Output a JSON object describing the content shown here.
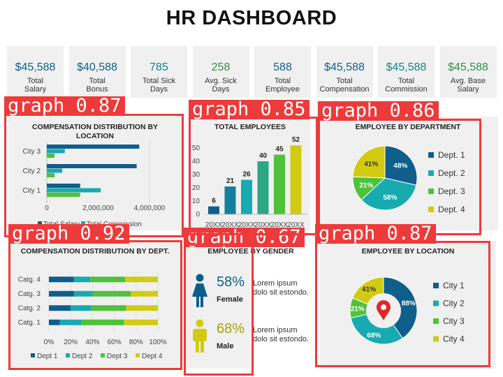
{
  "page_title": "HR DASHBOARD",
  "colors": {
    "navy": "#0f5e8c",
    "teal": "#17aab0",
    "green": "#4ec23a",
    "yellow": "#d2cb12",
    "kpi_green": "#2e8f44",
    "detect": "#ee3a3a"
  },
  "kpis": [
    {
      "value": "$45,588",
      "label1": "Total",
      "label2": "Salary",
      "color": "#0f5e8c"
    },
    {
      "value": "$40,588",
      "label1": "Total",
      "label2": "Bonus",
      "color": "#0f5e8c"
    },
    {
      "value": "785",
      "label1": "Total Sick",
      "label2": "Days",
      "color": "#11828a"
    },
    {
      "value": "258",
      "label1": "Avg. Sick",
      "label2": "Days",
      "color": "#2e8f44"
    },
    {
      "value": "588",
      "label1": "Total",
      "label2": "Employee",
      "color": "#0f5e8c"
    },
    {
      "value": "$45,588",
      "label1": "Total",
      "label2": "Compensation",
      "color": "#0f5e8c"
    },
    {
      "value": "$45,588",
      "label1": "Total",
      "label2": "Commission",
      "color": "#11828a"
    },
    {
      "value": "$45,588",
      "label1": "Avg. Base",
      "label2": "Salary",
      "color": "#2e8f44"
    }
  ],
  "detections": [
    {
      "label": "graph 0.87"
    },
    {
      "label": "graph 0.85"
    },
    {
      "label": "graph 0.86"
    },
    {
      "label": "graph 0.92"
    },
    {
      "label": "graph 0.67"
    },
    {
      "label": "graph 0.87"
    }
  ],
  "gender": {
    "title": "EMPLOYEE BY GENDER",
    "female_pct": "58%",
    "female_label": "Female",
    "male_pct": "68%",
    "male_label": "Male",
    "text1_line1": "Lorem ipsum",
    "text1_line2": "dolo sit estondo.",
    "text2_line1": "Lorem ipsum",
    "text2_line2": "dolo sit estondo."
  },
  "chart_data": [
    {
      "type": "bar",
      "orientation": "horizontal",
      "title": "COMPENSATION DISTRIBUTION BY LOCATION",
      "categories": [
        "City 1",
        "City 2",
        "City 3"
      ],
      "series": [
        {
          "name": "Total Salary",
          "values": [
            1300000,
            3500000,
            3600000
          ],
          "color": "#0f5e8c"
        },
        {
          "name": "Total Commission",
          "values": [
            2100000,
            600000,
            700000
          ],
          "color": "#17aab0"
        },
        {
          "name": "",
          "values": [
            1300000,
            300000,
            300000
          ],
          "color": "#4ec23a"
        }
      ],
      "xlim": [
        0,
        4000000
      ],
      "xticks": [
        "0",
        "2,000,000",
        "4,000,000"
      ],
      "legend": "bottom"
    },
    {
      "type": "bar",
      "title": "TOTAL EMPLOYEES",
      "categories": [
        "20XX",
        "20XX",
        "20XX",
        "20XX",
        "20XX",
        "20XX"
      ],
      "values": [
        6,
        21,
        26,
        40,
        45,
        52
      ],
      "colors": [
        "#0f5e8c",
        "#137f9c",
        "#17aab0",
        "#2da688",
        "#4ec23a",
        "#d2cb12"
      ],
      "ylim": [
        0,
        50
      ],
      "yticks": [
        "0",
        "10",
        "20",
        "30",
        "40",
        "50"
      ]
    },
    {
      "type": "pie",
      "title": "EMPLOYEE BY DEPARTMENT",
      "labels": [
        "Dept. 1",
        "Dept. 2",
        "Dept. 3",
        "Dept. 4"
      ],
      "slice_labels": [
        "48%",
        "58%",
        "21%",
        "41%"
      ],
      "values": [
        48,
        58,
        21,
        41
      ],
      "colors": [
        "#0f5e8c",
        "#17aab0",
        "#4ec23a",
        "#d2cb12"
      ],
      "legend": "right"
    },
    {
      "type": "bar",
      "orientation": "horizontal",
      "stacked": "percent",
      "title": "COMPENSATION DISTRIBUTION BY DEPT.",
      "categories": [
        "Catg. 1",
        "Catg. 2",
        "Catg. 3",
        "Catg. 4"
      ],
      "series": [
        {
          "name": "Dept 1",
          "values": [
            10,
            20,
            23,
            23
          ],
          "color": "#0f5e8c"
        },
        {
          "name": "Dept 2",
          "values": [
            20,
            19,
            17,
            15
          ],
          "color": "#17aab0"
        },
        {
          "name": "Dept 3",
          "values": [
            39,
            32,
            35,
            32
          ],
          "color": "#4ec23a"
        },
        {
          "name": "Dept 4",
          "values": [
            31,
            29,
            25,
            30
          ],
          "color": "#d2cb12"
        }
      ],
      "xlim": [
        0,
        100
      ],
      "xticks": [
        "0%",
        "20%",
        "40%",
        "60%",
        "80%",
        "100%"
      ],
      "legend": "bottom"
    },
    {
      "type": "pie",
      "style": "donut",
      "title": "EMPLOYEE BY LOCATION",
      "labels": [
        "City 1",
        "City 2",
        "City 3",
        "City 4"
      ],
      "slice_labels": [
        "88%",
        "68%",
        "21%",
        "41%"
      ],
      "values": [
        88,
        68,
        21,
        41
      ],
      "colors": [
        "#0f5e8c",
        "#17aab0",
        "#4ec23a",
        "#d2cb12"
      ],
      "legend": "right"
    }
  ]
}
